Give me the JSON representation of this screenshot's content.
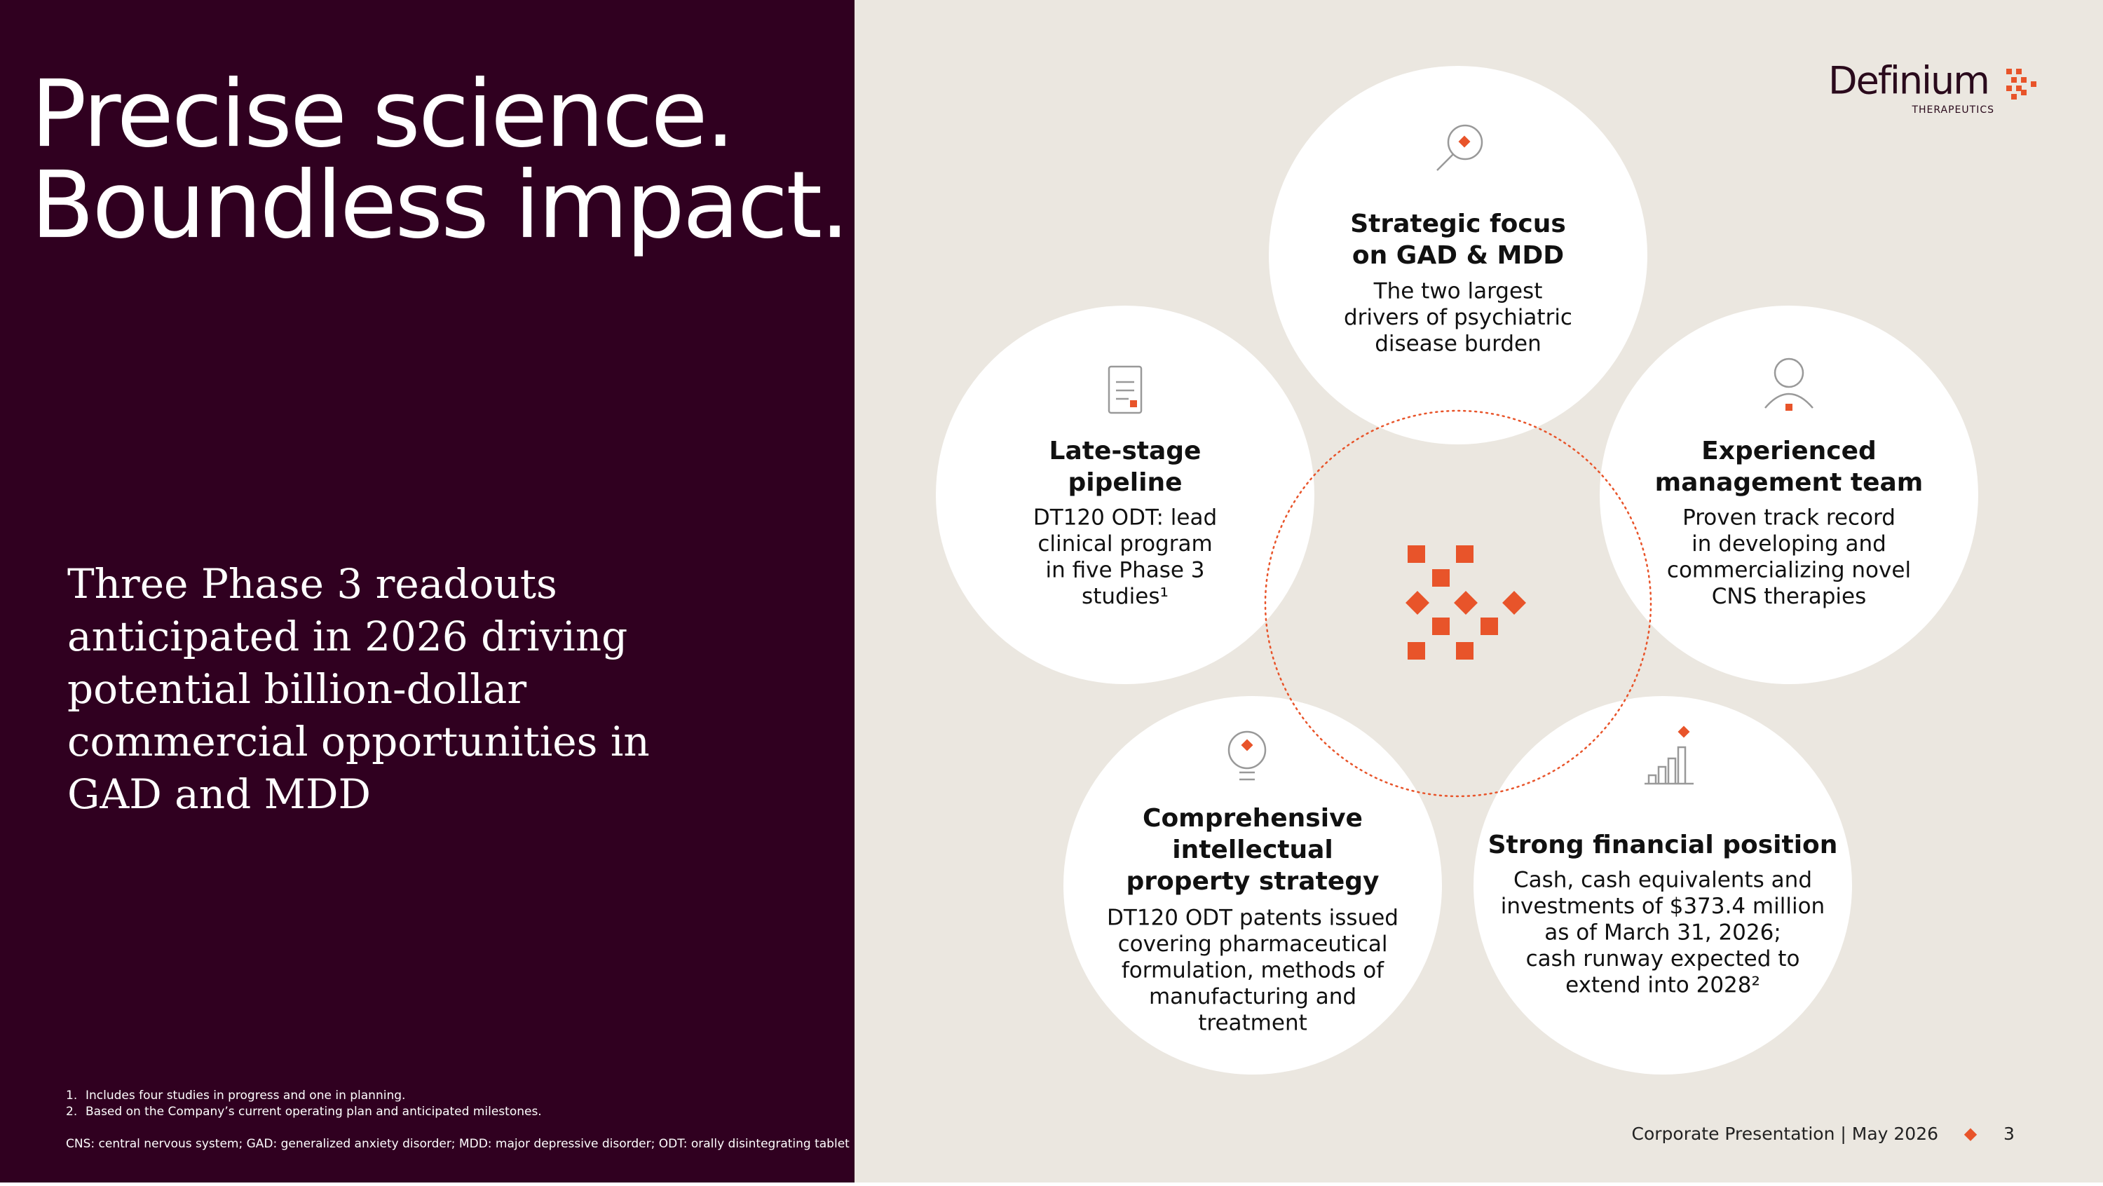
{
  "header": {
    "title_lines": [
      "Precise science.",
      "Boundless impact."
    ]
  },
  "tagline_lines": [
    "Three Phase 3 readouts",
    "anticipated in 2026 driving",
    "potential billion-dollar",
    "commercial opportunities in",
    "GAD and MDD"
  ],
  "logo": {
    "name": "Definium",
    "subtitle": "THERAPEUTICS"
  },
  "pillars": [
    {
      "heading_lines": [
        "Strategic focus",
        "on GAD & MDD"
      ],
      "body_lines": [
        "The two largest",
        "drivers of psychiatric",
        "disease burden"
      ]
    },
    {
      "heading_lines": [
        "Late-stage",
        "pipeline"
      ],
      "body_lines": [
        "DT120 ODT: lead",
        "clinical program",
        "in five Phase 3",
        "studies¹"
      ]
    },
    {
      "heading_lines": [
        "Experienced",
        "management team"
      ],
      "body_lines": [
        "Proven track record",
        "in developing and",
        "commercializing novel",
        "CNS therapies"
      ]
    },
    {
      "heading_lines": [
        "Comprehensive",
        "intellectual",
        "property strategy"
      ],
      "body_lines": [
        "DT120 ODT patents issued",
        "covering pharmaceutical",
        "formulation, methods of",
        "manufacturing and",
        "treatment"
      ]
    },
    {
      "heading_lines": [
        "Strong financial position"
      ],
      "body_lines": [
        "Cash, cash equivalents and",
        "investments of $373.4 million",
        "as of March 31, 2026;",
        "cash runway expected to",
        "extend into 2028²"
      ]
    }
  ],
  "footnotes": [
    {
      "marker": "1.",
      "text": "Includes four studies in progress and one in planning."
    },
    {
      "marker": "2.",
      "text": "Based on the Company’s current operating plan and anticipated milestones."
    }
  ],
  "abbreviations": "CNS: central nervous system; GAD: generalized anxiety disorder; MDD: major depressive disorder; ODT: orally disintegrating tablet",
  "footer": {
    "text": "Corporate Presentation | May 2026",
    "page": "3"
  }
}
